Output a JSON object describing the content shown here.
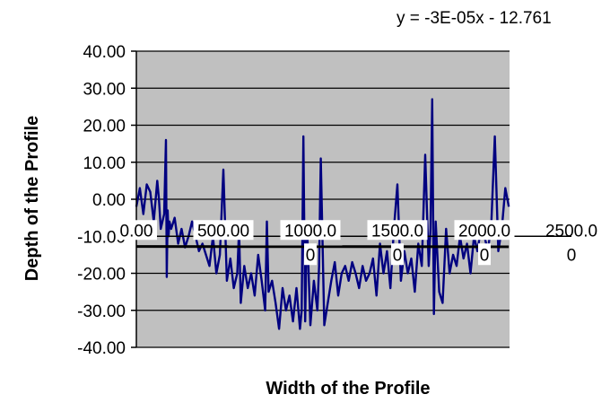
{
  "chart_data": {
    "type": "line",
    "title": "",
    "xlabel": "Width of the Profile",
    "ylabel": "Depth of the Profile",
    "trendline_equation": "y = -3E-05x - 12.761",
    "trendline": {
      "slope": -3e-05,
      "intercept": -12.761
    },
    "xlim": [
      0,
      2500
    ],
    "ylim": [
      -40,
      40
    ],
    "y_ticks": [
      "40.00",
      "30.00",
      "20.00",
      "10.00",
      "0.00",
      "-10.00",
      "-20.00",
      "-30.00",
      "-40.00"
    ],
    "x_ticks": [
      "0.00",
      "500.00",
      "1000.00",
      "1500.00",
      "2000.00",
      "2500.00"
    ],
    "grid": true,
    "legend": "none",
    "series": [
      {
        "color": "#000080",
        "x": [
          0,
          20,
          40,
          60,
          80,
          100,
          120,
          130,
          140,
          160,
          170,
          175,
          180,
          185,
          190,
          200,
          220,
          240,
          260,
          280,
          300,
          320,
          340,
          360,
          380,
          400,
          420,
          440,
          460,
          480,
          500,
          520,
          540,
          560,
          580,
          590,
          600,
          620,
          640,
          660,
          680,
          700,
          720,
          740,
          750,
          760,
          780,
          800,
          820,
          840,
          860,
          880,
          900,
          920,
          940,
          950,
          960,
          970,
          980,
          1000,
          1020,
          1040,
          1050,
          1060,
          1080,
          1100,
          1120,
          1140,
          1160,
          1180,
          1200,
          1220,
          1240,
          1260,
          1280,
          1300,
          1320,
          1340,
          1360,
          1380,
          1400,
          1420,
          1440,
          1460,
          1480,
          1500,
          1520,
          1540,
          1560,
          1580,
          1600,
          1620,
          1640,
          1660,
          1680,
          1690,
          1700,
          1710,
          1720,
          1740,
          1760,
          1780,
          1800,
          1820,
          1840,
          1860,
          1880,
          1900,
          1920,
          1940,
          1960,
          1980,
          2000,
          2020,
          2040,
          2060,
          2080,
          2100,
          2120,
          2140
        ],
        "y": [
          -2,
          3,
          -4,
          4,
          2,
          -6,
          5,
          0,
          -8,
          -4,
          16,
          -21,
          -3,
          -10,
          -6,
          -8,
          -5,
          -12,
          -8,
          -13,
          -10,
          -6,
          -10,
          -14,
          -12,
          -15,
          -18,
          -10,
          -20,
          -15,
          8,
          -22,
          -16,
          -24,
          -20,
          -8,
          -28,
          -18,
          -24,
          -20,
          -26,
          -15,
          -22,
          -30,
          -6,
          -25,
          -22,
          -28,
          -35,
          -24,
          -30,
          -26,
          -33,
          -24,
          -35,
          -30,
          17,
          -33,
          -6,
          -34,
          -22,
          -30,
          -18,
          11,
          -34,
          -28,
          -22,
          -17,
          -26,
          -20,
          -18,
          -22,
          -17,
          -20,
          -24,
          -18,
          -22,
          -20,
          -16,
          -26,
          -12,
          -20,
          -14,
          -24,
          -8,
          4,
          -22,
          -14,
          -20,
          -16,
          -25,
          -12,
          -18,
          12,
          -18,
          -8,
          27,
          -31,
          -6,
          -25,
          -28,
          -8,
          -20,
          -15,
          -18,
          -10,
          -16,
          -12,
          -20,
          -10,
          -14,
          -8,
          -10,
          -14,
          -6,
          17,
          -14,
          -8,
          3,
          -2
        ]
      }
    ]
  }
}
